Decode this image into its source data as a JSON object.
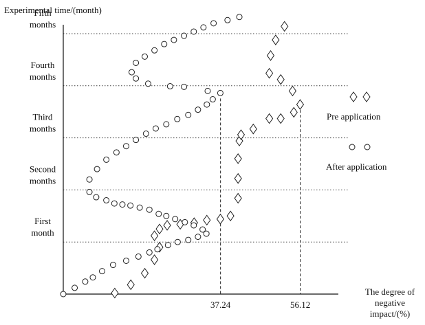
{
  "chart_data": {
    "type": "scatter",
    "ylabel": "Experimental time/(month)",
    "xlabel": [
      "The degree of",
      "negative",
      "impact/(%)"
    ],
    "x_ticks": [
      {
        "value": 37.24,
        "label": "37.24"
      },
      {
        "value": 56.12,
        "label": "56.12"
      }
    ],
    "y_ticks": [
      {
        "value": 1,
        "label": [
          "First",
          "month"
        ]
      },
      {
        "value": 2,
        "label": [
          "Second",
          "months"
        ]
      },
      {
        "value": 3,
        "label": [
          "Third",
          "months"
        ]
      },
      {
        "value": 4,
        "label": [
          "Fourth",
          "months"
        ]
      },
      {
        "value": 5,
        "label": [
          "Fifth",
          "months"
        ]
      }
    ],
    "xlim": [
      0,
      64
    ],
    "ylim": [
      0,
      5.4
    ],
    "grid": "horizontal-dotted",
    "legend_position": "right",
    "series": [
      {
        "name": "Pre application",
        "marker": "diamond",
        "points": [
          [
            12.2,
            0.02
          ],
          [
            16.0,
            0.18
          ],
          [
            19.3,
            0.4
          ],
          [
            21.6,
            0.66
          ],
          [
            22.8,
            0.9
          ],
          [
            21.6,
            1.12
          ],
          [
            22.8,
            1.25
          ],
          [
            24.6,
            1.32
          ],
          [
            27.7,
            1.34
          ],
          [
            31.0,
            1.37
          ],
          [
            34.0,
            1.42
          ],
          [
            37.2,
            1.44
          ],
          [
            39.6,
            1.5
          ],
          [
            41.4,
            1.84
          ],
          [
            41.4,
            2.22
          ],
          [
            41.4,
            2.6
          ],
          [
            41.7,
            2.94
          ],
          [
            42.1,
            3.06
          ],
          [
            45.0,
            3.17
          ],
          [
            48.8,
            3.37
          ],
          [
            51.5,
            3.37
          ],
          [
            54.6,
            3.49
          ],
          [
            56.1,
            3.64
          ],
          [
            54.3,
            3.9
          ],
          [
            51.5,
            4.12
          ],
          [
            48.8,
            4.24
          ],
          [
            49.1,
            4.58
          ],
          [
            50.3,
            4.88
          ],
          [
            52.4,
            5.14
          ]
        ]
      },
      {
        "name": "After application",
        "marker": "circle",
        "points": [
          [
            0,
            0
          ],
          [
            2.7,
            0.12
          ],
          [
            5.2,
            0.24
          ],
          [
            7.0,
            0.32
          ],
          [
            9.2,
            0.44
          ],
          [
            11.8,
            0.56
          ],
          [
            14.9,
            0.64
          ],
          [
            17.8,
            0.72
          ],
          [
            20.4,
            0.8
          ],
          [
            22.3,
            0.86
          ],
          [
            24.8,
            0.94
          ],
          [
            27.1,
            1.0
          ],
          [
            29.6,
            1.04
          ],
          [
            31.9,
            1.1
          ],
          [
            33.9,
            1.16
          ],
          [
            33.0,
            1.24
          ],
          [
            30.9,
            1.32
          ],
          [
            28.8,
            1.38
          ],
          [
            26.5,
            1.44
          ],
          [
            24.4,
            1.5
          ],
          [
            22.6,
            1.54
          ],
          [
            20.4,
            1.62
          ],
          [
            18.1,
            1.66
          ],
          [
            15.9,
            1.7
          ],
          [
            14.0,
            1.72
          ],
          [
            12.1,
            1.74
          ],
          [
            10.2,
            1.8
          ],
          [
            7.8,
            1.86
          ],
          [
            6.2,
            1.96
          ],
          [
            6.2,
            2.2
          ],
          [
            8.0,
            2.4
          ],
          [
            10.2,
            2.58
          ],
          [
            12.6,
            2.72
          ],
          [
            14.9,
            2.84
          ],
          [
            17.2,
            2.96
          ],
          [
            19.6,
            3.08
          ],
          [
            21.9,
            3.18
          ],
          [
            24.4,
            3.26
          ],
          [
            27.0,
            3.36
          ],
          [
            29.6,
            3.44
          ],
          [
            31.9,
            3.54
          ],
          [
            34.0,
            3.64
          ],
          [
            35.4,
            3.74
          ],
          [
            37.2,
            3.86
          ],
          [
            34.2,
            3.9
          ],
          [
            28.6,
            3.98
          ],
          [
            25.3,
            3.99
          ],
          [
            20.1,
            4.04
          ],
          [
            17.2,
            4.14
          ],
          [
            16.2,
            4.26
          ],
          [
            17.2,
            4.44
          ],
          [
            19.3,
            4.56
          ],
          [
            21.6,
            4.68
          ],
          [
            23.9,
            4.8
          ],
          [
            26.2,
            4.88
          ],
          [
            28.6,
            4.96
          ],
          [
            30.9,
            5.04
          ],
          [
            33.2,
            5.12
          ],
          [
            35.6,
            5.2
          ],
          [
            38.9,
            5.26
          ],
          [
            41.7,
            5.32
          ]
        ]
      }
    ],
    "reference_lines": [
      37.24,
      56.12
    ]
  }
}
